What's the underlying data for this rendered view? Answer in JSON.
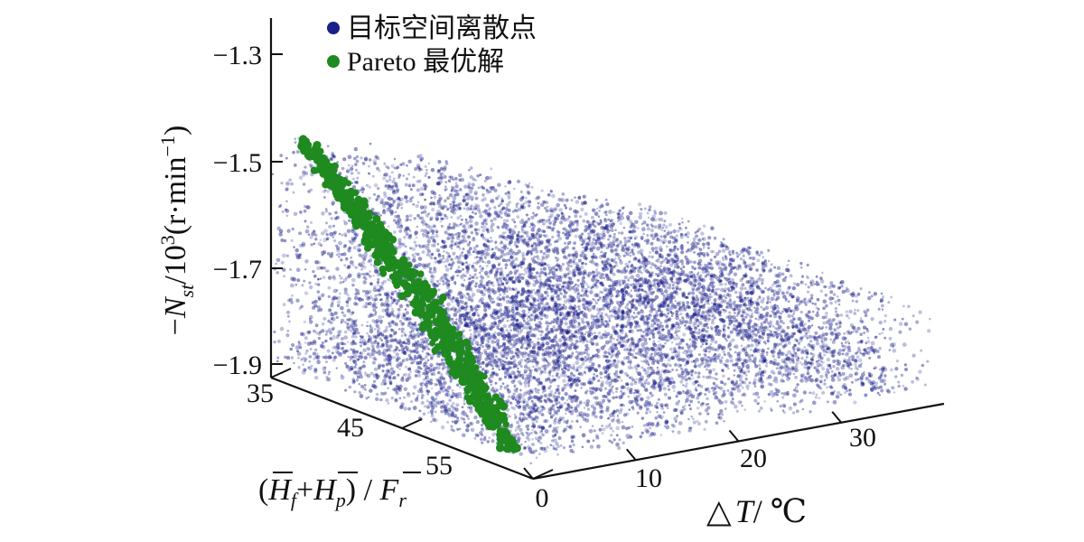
{
  "chart_data": {
    "type": "scatter",
    "projection": "3d",
    "legend_position": "top-left",
    "grid": false,
    "series": [
      {
        "name": "目标空间离散点",
        "color": "#1a1f8a",
        "count_estimate": 9000,
        "x_range": [
          0,
          39
        ],
        "y_range": [
          35,
          55
        ],
        "z_range": [
          -1.9,
          -1.46
        ]
      },
      {
        "name": "Pareto 最优解",
        "color": "#1f8a1f",
        "count_estimate": 600,
        "x_range": [
          0,
          3
        ],
        "y_range": [
          35,
          55
        ],
        "z_range": [
          -1.9,
          -1.45
        ],
        "points_sample": [
          {
            "x": 0.0,
            "y": 53.0,
            "z": -1.9
          },
          {
            "x": 0.2,
            "y": 51.0,
            "z": -1.86
          },
          {
            "x": 0.5,
            "y": 49.0,
            "z": -1.82
          },
          {
            "x": 0.8,
            "y": 47.0,
            "z": -1.78
          },
          {
            "x": 1.0,
            "y": 45.0,
            "z": -1.74
          },
          {
            "x": 1.2,
            "y": 43.0,
            "z": -1.7
          },
          {
            "x": 1.4,
            "y": 41.5,
            "z": -1.66
          },
          {
            "x": 1.6,
            "y": 40.0,
            "z": -1.62
          },
          {
            "x": 1.8,
            "y": 39.0,
            "z": -1.58
          },
          {
            "x": 2.0,
            "y": 38.0,
            "z": -1.54
          },
          {
            "x": 2.2,
            "y": 37.5,
            "z": -1.5
          },
          {
            "x": 2.4,
            "y": 37.0,
            "z": -1.46
          }
        ]
      }
    ],
    "axes": {
      "x": {
        "label": "△T/ ℃",
        "ticks": [
          0,
          10,
          20,
          30
        ],
        "tick_labels": [
          "0",
          "10",
          "20",
          "30"
        ],
        "range": [
          0,
          40
        ]
      },
      "y": {
        "label": "(H̄f+H̄p) / F̄r",
        "ticks": [
          35,
          45,
          55
        ],
        "tick_labels": [
          "35",
          "45",
          "55"
        ],
        "range": [
          35,
          55
        ]
      },
      "z": {
        "label": "−Nst/10³(r·min⁻¹)",
        "ticks": [
          -1.3,
          -1.5,
          -1.7,
          -1.9
        ],
        "tick_labels": [
          "−1.3",
          "−1.5",
          "−1.7",
          "−1.9"
        ],
        "range": [
          -1.9,
          -1.25
        ]
      }
    }
  }
}
